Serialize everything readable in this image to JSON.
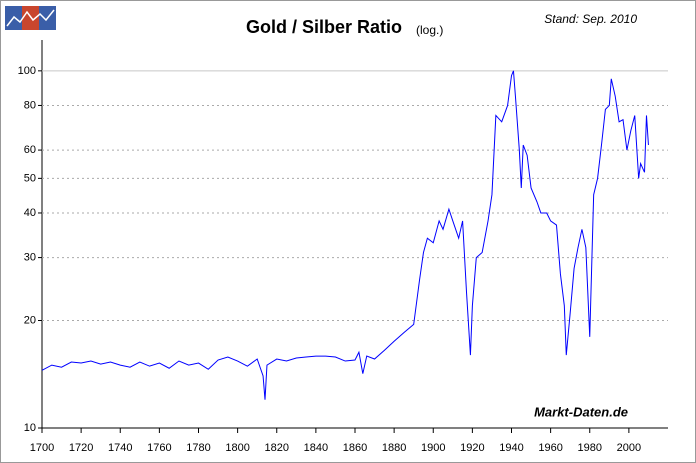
{
  "chart_data": {
    "type": "line",
    "title": "Gold / Silber Ratio",
    "title_note": "(log.)",
    "subtitle": "Stand: Sep. 2010",
    "source": "Markt-Daten.de",
    "x": [
      1700,
      1705,
      1710,
      1715,
      1720,
      1725,
      1730,
      1735,
      1740,
      1745,
      1750,
      1755,
      1760,
      1765,
      1770,
      1775,
      1780,
      1785,
      1790,
      1795,
      1800,
      1805,
      1810,
      1813,
      1814,
      1815,
      1820,
      1825,
      1830,
      1835,
      1840,
      1845,
      1850,
      1855,
      1860,
      1862,
      1864,
      1866,
      1870,
      1875,
      1880,
      1885,
      1890,
      1893,
      1895,
      1897,
      1900,
      1903,
      1905,
      1908,
      1910,
      1913,
      1915,
      1917,
      1919,
      1920,
      1922,
      1925,
      1928,
      1930,
      1932,
      1935,
      1938,
      1940,
      1941,
      1942,
      1944,
      1945,
      1946,
      1948,
      1950,
      1953,
      1955,
      1958,
      1960,
      1963,
      1965,
      1967,
      1968,
      1970,
      1972,
      1974,
      1976,
      1978,
      1980,
      1982,
      1984,
      1986,
      1988,
      1990,
      1991,
      1993,
      1995,
      1997,
      1999,
      2001,
      2003,
      2005,
      2006,
      2008,
      2009,
      2010
    ],
    "series": [
      {
        "color": "#0000ff",
        "values": [
          14.5,
          15.0,
          14.8,
          15.3,
          15.2,
          15.4,
          15.1,
          15.3,
          15.0,
          14.8,
          15.3,
          14.9,
          15.2,
          14.7,
          15.4,
          15.0,
          15.2,
          14.6,
          15.5,
          15.8,
          15.4,
          14.9,
          15.6,
          14.0,
          12.0,
          15.0,
          15.6,
          15.4,
          15.7,
          15.8,
          15.9,
          15.9,
          15.8,
          15.4,
          15.5,
          16.3,
          14.2,
          15.9,
          15.6,
          16.5,
          17.5,
          18.5,
          19.5,
          26,
          31,
          34,
          33,
          38,
          36,
          41,
          38,
          34,
          38,
          24,
          16,
          22,
          30,
          31,
          38,
          45,
          75,
          72,
          80,
          97,
          100,
          85,
          60,
          47,
          62,
          58,
          47,
          43,
          40,
          40,
          38,
          37,
          27,
          22,
          16,
          21,
          28,
          32,
          36,
          32,
          18,
          45,
          50,
          62,
          78,
          80,
          95,
          85,
          72,
          73,
          60,
          68,
          75,
          50,
          55,
          52,
          75,
          62
        ]
      }
    ],
    "xlim": [
      1700,
      2020
    ],
    "xticks": [
      1700,
      1720,
      1740,
      1760,
      1780,
      1800,
      1820,
      1840,
      1860,
      1880,
      1900,
      1920,
      1940,
      1960,
      1980,
      2000
    ],
    "ylim": [
      10,
      122
    ],
    "yticks": [
      10,
      20,
      30,
      40,
      50,
      60,
      80,
      100
    ],
    "log_scale": true,
    "grid": true
  }
}
